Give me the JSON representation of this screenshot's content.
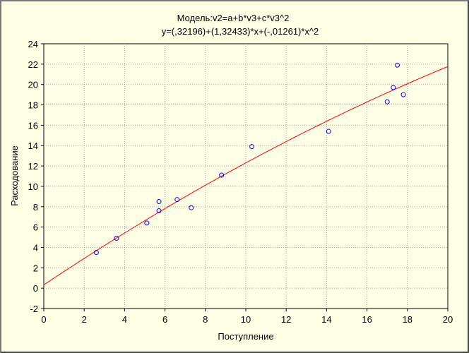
{
  "chart_data": {
    "type": "scatter",
    "title": "Модель:v2=a+b*v3+c*v3^2",
    "subtitle": "y=(,32196)+(1,32433)*x+(-,01261)*x^2",
    "xlabel": "Поступление",
    "ylabel": "Расходование",
    "xlim": [
      0,
      20
    ],
    "ylim": [
      -2,
      24
    ],
    "x_ticks": [
      "0",
      "2",
      "4",
      "6",
      "8",
      "10",
      "12",
      "14",
      "16",
      "18",
      "20"
    ],
    "y_ticks": [
      "-2",
      "0",
      "2",
      "4",
      "6",
      "8",
      "10",
      "12",
      "14",
      "16",
      "18",
      "20",
      "22",
      "24"
    ],
    "grid": true,
    "points": [
      {
        "x": 2.6,
        "y": 3.5
      },
      {
        "x": 3.6,
        "y": 4.9
      },
      {
        "x": 5.1,
        "y": 6.4
      },
      {
        "x": 5.7,
        "y": 7.6
      },
      {
        "x": 5.7,
        "y": 8.5
      },
      {
        "x": 6.6,
        "y": 8.7
      },
      {
        "x": 7.3,
        "y": 7.9
      },
      {
        "x": 8.8,
        "y": 11.1
      },
      {
        "x": 10.3,
        "y": 13.9
      },
      {
        "x": 14.1,
        "y": 15.4
      },
      {
        "x": 17.0,
        "y": 18.3
      },
      {
        "x": 17.3,
        "y": 19.7
      },
      {
        "x": 17.5,
        "y": 21.9
      },
      {
        "x": 17.8,
        "y": 19.0
      }
    ],
    "fit": {
      "type": "quadratic",
      "a": 0.32196,
      "b": 1.32433,
      "c": -0.01261
    },
    "colors": {
      "background": "#ffffe6",
      "point": "#0000ff",
      "fit_line": "#ff0000",
      "grid": "#a0a0a0"
    }
  }
}
